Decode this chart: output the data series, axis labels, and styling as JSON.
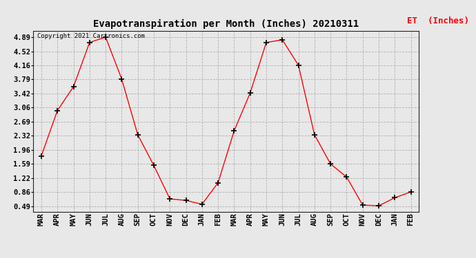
{
  "title": "Evapotranspiration per Month (Inches) 20210311",
  "legend_label": "ET  (Inches)",
  "copyright": "Copyright 2021 Cartronics.com",
  "months": [
    "MAR",
    "APR",
    "MAY",
    "JUN",
    "JUL",
    "AUG",
    "SEP",
    "OCT",
    "NOV",
    "DEC",
    "JAN",
    "FEB",
    "MAR",
    "APR",
    "MAY",
    "JUN",
    "JUL",
    "AUG",
    "SEP",
    "OCT",
    "NOV",
    "DEC",
    "JAN",
    "FEB"
  ],
  "values": [
    1.8,
    2.98,
    3.6,
    4.75,
    4.89,
    3.8,
    2.35,
    1.55,
    0.68,
    0.64,
    0.54,
    1.1,
    2.45,
    3.44,
    4.75,
    4.82,
    4.16,
    2.35,
    1.59,
    1.25,
    0.52,
    0.5,
    0.71,
    0.86
  ],
  "yticks": [
    0.49,
    0.86,
    1.22,
    1.59,
    1.96,
    2.32,
    2.69,
    3.06,
    3.42,
    3.79,
    4.16,
    4.52,
    4.89
  ],
  "line_color": "red",
  "marker": "+",
  "marker_color": "black",
  "background_color": "#e8e8e8",
  "grid_color": "#b0b0b0",
  "title_fontsize": 10,
  "legend_fontsize": 9,
  "tick_fontsize": 7.5,
  "copyright_fontsize": 6.5,
  "ymin": 0.35,
  "ymax": 5.05
}
